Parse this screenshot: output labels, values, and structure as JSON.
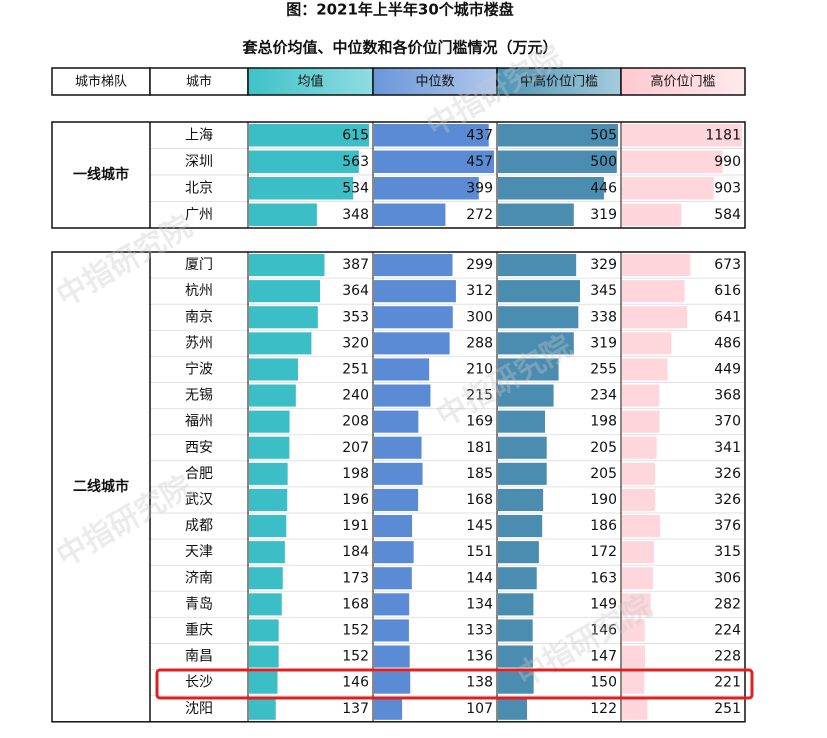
{
  "header": {
    "title": "图：2021年上半年30个城市楼盘",
    "subtitle": "套总价均值、中位数和各价位门槛情况（万元）"
  },
  "columns": [
    "城市梯队",
    "城市",
    "均值",
    "中位数",
    "中高价位门槛",
    "高价位门槛"
  ],
  "watermark": "中指研究院",
  "groups": [
    {
      "tier": "一线城市",
      "rows": [
        {
          "city": "上海",
          "values": [
            615,
            437,
            505,
            1181
          ]
        },
        {
          "city": "深圳",
          "values": [
            563,
            457,
            500,
            990
          ]
        },
        {
          "city": "北京",
          "values": [
            534,
            399,
            446,
            903
          ]
        },
        {
          "city": "广州",
          "values": [
            348,
            272,
            319,
            584
          ]
        }
      ]
    },
    {
      "tier": "二线城市",
      "rows": [
        {
          "city": "厦门",
          "values": [
            387,
            299,
            329,
            673
          ]
        },
        {
          "city": "杭州",
          "values": [
            364,
            312,
            345,
            616
          ]
        },
        {
          "city": "南京",
          "values": [
            353,
            300,
            338,
            641
          ]
        },
        {
          "city": "苏州",
          "values": [
            320,
            288,
            319,
            486
          ]
        },
        {
          "city": "宁波",
          "values": [
            251,
            210,
            255,
            449
          ]
        },
        {
          "city": "无锡",
          "values": [
            240,
            215,
            234,
            368
          ]
        },
        {
          "city": "福州",
          "values": [
            208,
            169,
            198,
            370
          ]
        },
        {
          "city": "西安",
          "values": [
            207,
            181,
            205,
            341
          ]
        },
        {
          "city": "合肥",
          "values": [
            198,
            185,
            205,
            326
          ]
        },
        {
          "city": "武汉",
          "values": [
            196,
            168,
            190,
            326
          ]
        },
        {
          "city": "成都",
          "values": [
            191,
            145,
            186,
            376
          ]
        },
        {
          "city": "天津",
          "values": [
            184,
            151,
            172,
            315
          ]
        },
        {
          "city": "济南",
          "values": [
            173,
            144,
            163,
            306
          ]
        },
        {
          "city": "青岛",
          "values": [
            168,
            134,
            149,
            282
          ]
        },
        {
          "city": "重庆",
          "values": [
            152,
            133,
            146,
            224
          ]
        },
        {
          "city": "南昌",
          "values": [
            152,
            136,
            147,
            228
          ]
        },
        {
          "city": "长沙",
          "values": [
            146,
            138,
            150,
            221
          ]
        },
        {
          "city": "沈阳",
          "values": [
            137,
            107,
            122,
            251
          ]
        }
      ]
    }
  ]
}
